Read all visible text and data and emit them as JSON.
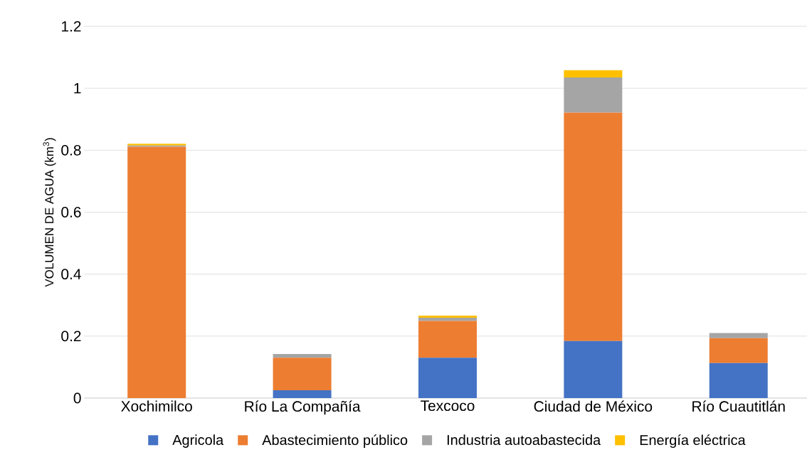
{
  "chart_data": {
    "type": "bar",
    "stacked": true,
    "ylabel": "VOLUMEN DE AGUA (km$^{3}$)",
    "categories": [
      "Xochimilco",
      "Río La Compañía",
      "Texcoco",
      "Ciudad de México",
      "Río Cuautitlán"
    ],
    "series": [
      {
        "name": "Agricola",
        "color": "#4472c4",
        "values": [
          0,
          0.025,
          0.13,
          0.184,
          0.113
        ]
      },
      {
        "name": "Abastecimiento público",
        "color": "#ed7d31",
        "values": [
          0.811,
          0.105,
          0.119,
          0.737,
          0.08
        ]
      },
      {
        "name": "Industria autoabastecida",
        "color": "#a5a5a5",
        "values": [
          0.004,
          0.012,
          0.01,
          0.114,
          0.017
        ]
      },
      {
        "name": "Energía eléctrica",
        "color": "#ffc000",
        "values": [
          0.006,
          0,
          0.007,
          0.023,
          0
        ]
      }
    ],
    "ylim": [
      0,
      1.2
    ],
    "yticks": [
      0,
      0.2,
      0.4,
      0.6,
      0.8,
      1,
      1.2
    ],
    "grid": "y",
    "legend": "bottom"
  }
}
